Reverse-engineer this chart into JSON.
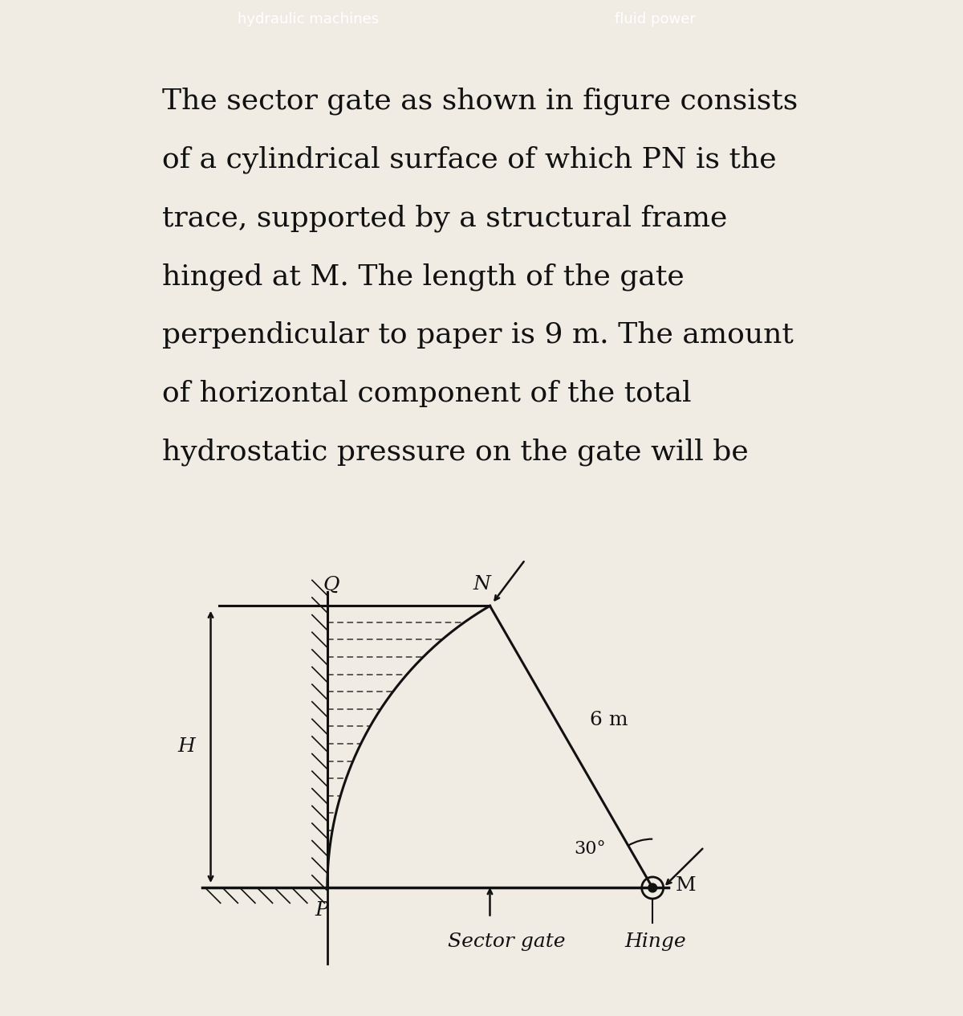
{
  "bg_color": "#f0ece4",
  "header_color": "#2a2a2a",
  "line_color": "#111111",
  "dashed_color": "#333333",
  "text_color": "#111111",
  "paragraph_lines": [
    "The sector gate as shown in figure consists",
    "of a cylindrical surface of which PN is the",
    "trace, supported by a structural frame",
    "hinged at M. The length of the gate",
    "perpendicular to paper is 9 m. The amount",
    "of horizontal component of the total",
    "hydrostatic pressure on the gate will be"
  ],
  "paragraph_fontsize": 26,
  "label_fontsize": 18,
  "Mx": 7.8,
  "My": 0.0,
  "R": 6.0,
  "theta_P_deg": 180.0,
  "theta_N_deg": 120.0,
  "angle_30_label": "30°",
  "label_Q": "Q",
  "label_N": "N",
  "label_H": "H",
  "label_P": "P",
  "label_M": "M",
  "label_6m": "6 m",
  "label_sector": "Sector gate",
  "label_hinge": "Hinge"
}
